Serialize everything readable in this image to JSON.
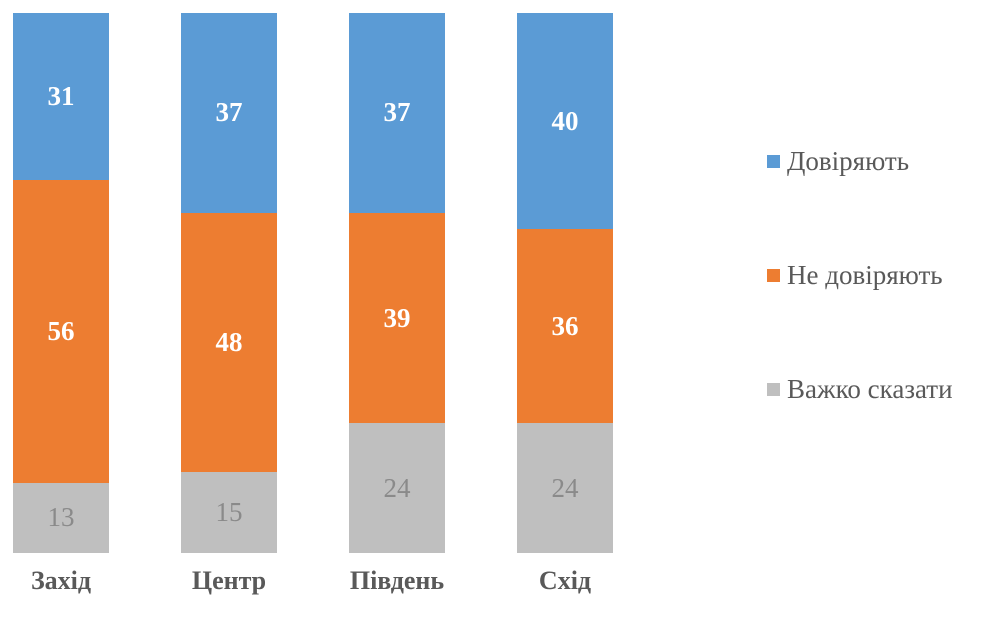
{
  "chart_data": {
    "type": "bar",
    "subtype": "stacked-column-100-percent",
    "title": "",
    "xlabel": "",
    "ylabel": "",
    "ylim": [
      0,
      100
    ],
    "grid": false,
    "axes_visible": false,
    "data_labels": true,
    "legend_position": "right",
    "categories": [
      "Захід",
      "Центр",
      "Південь",
      "Схід"
    ],
    "category_slugs": [
      "west",
      "center",
      "south",
      "east"
    ],
    "series": [
      {
        "name": "Довіряють",
        "slug": "trust",
        "color": "#5B9BD5",
        "label_color": "#FFFFFF",
        "label_bold": true,
        "values": [
          31,
          37,
          37,
          40
        ]
      },
      {
        "name": "Не довіряють",
        "slug": "distrust",
        "color": "#ED7D31",
        "label_color": "#FFFFFF",
        "label_bold": true,
        "values": [
          56,
          48,
          39,
          36
        ]
      },
      {
        "name": "Важко сказати",
        "slug": "hard-to-say",
        "color": "#BFBFBF",
        "label_color": "#8A8A8A",
        "label_bold": false,
        "values": [
          13,
          15,
          24,
          24
        ]
      }
    ],
    "text_color": "#595959"
  }
}
